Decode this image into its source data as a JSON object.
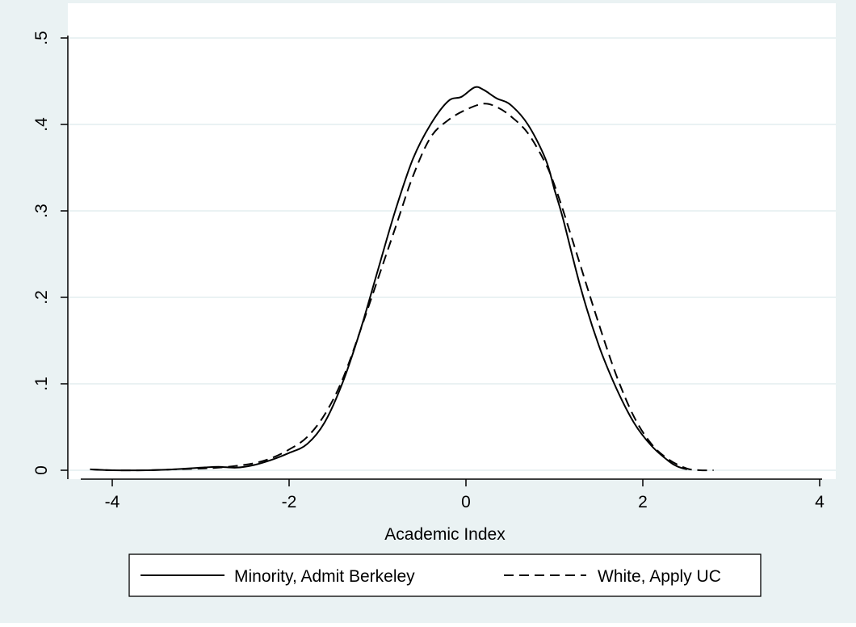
{
  "chart_data": {
    "type": "line",
    "title": "",
    "xlabel": "Academic Index",
    "ylabel": "",
    "xlim": [
      -4.3,
      4.1
    ],
    "ylim": [
      -0.01,
      0.515
    ],
    "x_ticks": [
      -4,
      -2,
      0,
      2,
      4
    ],
    "x_tick_labels": [
      "-4",
      "-2",
      "0",
      "2",
      "4"
    ],
    "y_ticks": [
      0,
      0.1,
      0.2,
      0.3,
      0.4,
      0.5
    ],
    "y_tick_labels": [
      "0",
      ".1",
      ".2",
      ".3",
      ".4",
      ".5"
    ],
    "grid": true,
    "legend_position": "bottom",
    "colors": {
      "outer_background": "#eaf2f3",
      "plot_background": "#ffffff",
      "grid": "#e4eeef",
      "line": "#000000"
    },
    "series": [
      {
        "name": "Minority, Admit Berkeley",
        "style": "solid",
        "x": [
          -4.25,
          -4.0,
          -3.6,
          -3.3,
          -3.0,
          -2.8,
          -2.6,
          -2.4,
          -2.2,
          -2.0,
          -1.8,
          -1.6,
          -1.4,
          -1.2,
          -1.0,
          -0.8,
          -0.6,
          -0.4,
          -0.2,
          -0.05,
          0.1,
          0.2,
          0.35,
          0.5,
          0.7,
          0.9,
          1.0,
          1.1,
          1.3,
          1.5,
          1.7,
          1.9,
          2.1,
          2.3,
          2.4,
          2.5
        ],
        "y": [
          0.001,
          0.0,
          0.0,
          0.001,
          0.003,
          0.004,
          0.003,
          0.006,
          0.012,
          0.02,
          0.03,
          0.055,
          0.1,
          0.16,
          0.23,
          0.3,
          0.36,
          0.4,
          0.427,
          0.432,
          0.443,
          0.44,
          0.43,
          0.423,
          0.4,
          0.36,
          0.325,
          0.29,
          0.21,
          0.145,
          0.095,
          0.055,
          0.028,
          0.01,
          0.004,
          0.001
        ]
      },
      {
        "name": "White, Apply UC",
        "style": "dashed",
        "x": [
          -4.25,
          -4.0,
          -3.6,
          -3.3,
          -3.0,
          -2.8,
          -2.6,
          -2.4,
          -2.2,
          -2.0,
          -1.8,
          -1.6,
          -1.4,
          -1.2,
          -1.0,
          -0.8,
          -0.6,
          -0.4,
          -0.2,
          0.0,
          0.2,
          0.35,
          0.5,
          0.7,
          0.9,
          1.0,
          1.1,
          1.3,
          1.5,
          1.7,
          1.9,
          2.1,
          2.3,
          2.5,
          2.65,
          2.8
        ],
        "y": [
          0.001,
          0.0,
          0.0,
          0.001,
          0.002,
          0.003,
          0.005,
          0.008,
          0.014,
          0.024,
          0.038,
          0.064,
          0.104,
          0.16,
          0.22,
          0.28,
          0.34,
          0.385,
          0.405,
          0.417,
          0.424,
          0.42,
          0.41,
          0.39,
          0.355,
          0.33,
          0.3,
          0.235,
          0.17,
          0.11,
          0.062,
          0.03,
          0.012,
          0.002,
          0.0,
          0.0
        ]
      }
    ]
  }
}
